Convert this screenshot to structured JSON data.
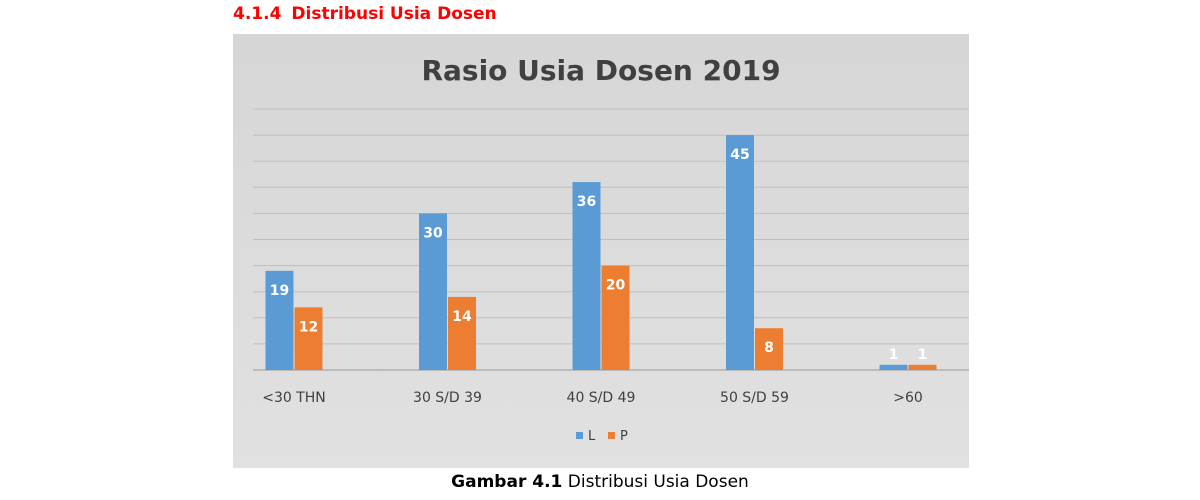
{
  "heading": {
    "number": "4.1.4",
    "text": "Distribusi Usia Dosen",
    "color": "#ff0000"
  },
  "caption": {
    "bold": "Gambar 4.1",
    "text": " Distribusi Usia Dosen"
  },
  "chart_data": {
    "type": "bar",
    "title": "Rasio Usia Dosen 2019",
    "categories": [
      "<30 THN",
      "30 S/D 39",
      "40 S/D 49",
      "50 S/D 59",
      ">60"
    ],
    "series": [
      {
        "name": "L",
        "values": [
          19,
          30,
          36,
          45,
          1
        ],
        "color": "#5b9bd5"
      },
      {
        "name": "P",
        "values": [
          12,
          14,
          20,
          8,
          1
        ],
        "color": "#ed7d31"
      }
    ],
    "ylim": [
      0,
      50
    ],
    "xlabel": "",
    "ylabel": "",
    "grid": true,
    "data_labels": true,
    "legend": "bottom-center",
    "background": "#d9d9d9"
  }
}
